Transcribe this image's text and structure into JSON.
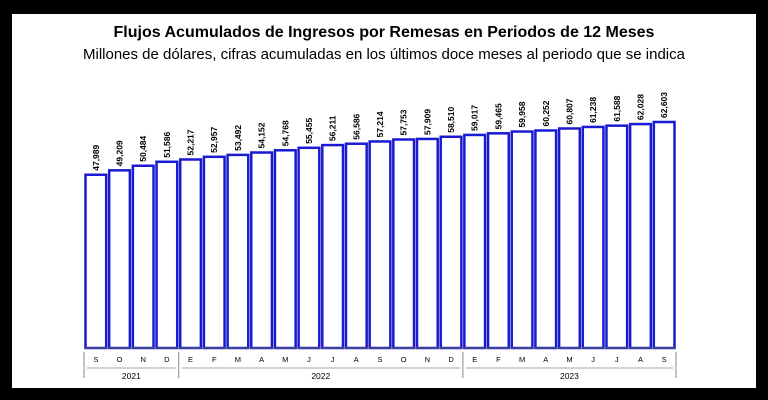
{
  "chart_data": {
    "type": "bar",
    "title": "Flujos Acumulados de Ingresos por Remesas en Periodos de 12 Meses",
    "subtitle": "Millones de dólares, cifras acumuladas en los últimos doce meses al periodo que se indica",
    "categories": [
      "S",
      "O",
      "N",
      "D",
      "E",
      "F",
      "M",
      "A",
      "M",
      "J",
      "J",
      "A",
      "S",
      "O",
      "N",
      "D",
      "E",
      "F",
      "M",
      "A",
      "M",
      "J",
      "J",
      "A",
      "S"
    ],
    "values": [
      47989,
      49209,
      50484,
      51586,
      52217,
      52957,
      53492,
      54152,
      54768,
      55455,
      56211,
      56586,
      57214,
      57753,
      57909,
      58510,
      59017,
      59465,
      59958,
      60252,
      60807,
      61238,
      61588,
      62028,
      62603
    ],
    "value_labels": [
      "47,989",
      "49,209",
      "50,484",
      "51,586",
      "52,217",
      "52,957",
      "53,492",
      "54,152",
      "54,768",
      "55,455",
      "56,211",
      "56,586",
      "57,214",
      "57,753",
      "57,909",
      "58,510",
      "59,017",
      "59,465",
      "59,958",
      "60,252",
      "60,807",
      "61,238",
      "61,588",
      "62,028",
      "62,603"
    ],
    "year_groups": [
      {
        "label": "2021",
        "start": 0,
        "end": 3
      },
      {
        "label": "2022",
        "start": 4,
        "end": 15
      },
      {
        "label": "2023",
        "start": 16,
        "end": 24
      }
    ],
    "ylim": [
      0,
      62603
    ],
    "bar_color": "#1a1ad0",
    "bar_fill": "#ffffff"
  }
}
